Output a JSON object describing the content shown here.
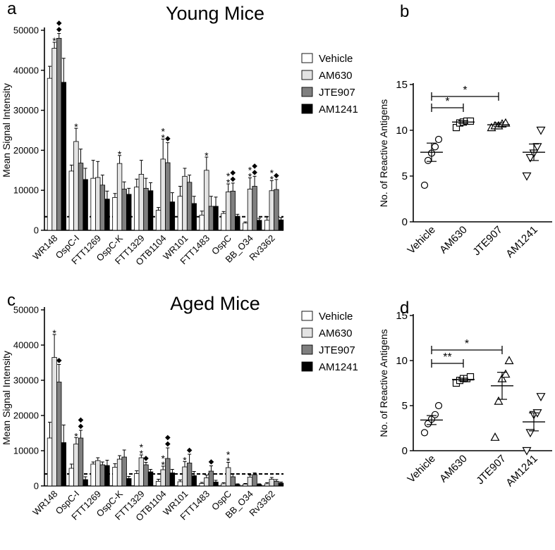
{
  "figure": {
    "panel_labels": [
      "a",
      "b",
      "c",
      "d"
    ],
    "colors": {
      "Vehicle": "#ffffff",
      "AM630": "#e3e3e3",
      "JTE907": "#7f7f7f",
      "AM1241": "#000000",
      "axis": "#000000",
      "threshold": "#000000"
    }
  },
  "chart_data": [
    {
      "panel": "a",
      "type": "bar",
      "title": "Young Mice",
      "ylabel": "Mean Signal Intensity",
      "xlabel": "",
      "ylim": [
        0,
        50000
      ],
      "yticks": [
        0,
        10000,
        20000,
        30000,
        40000,
        50000
      ],
      "threshold": 3400,
      "legend": "top-right",
      "categories": [
        "WR148",
        "OspC-I",
        "FTT1269",
        "OspC-K",
        "FTT1329",
        "OTB1104",
        "WR101",
        "FTT1483",
        "OspC",
        "BB_O34",
        "Rv3362"
      ],
      "series": [
        {
          "name": "Vehicle",
          "values": [
            38000,
            14800,
            13000,
            8200,
            10800,
            5000,
            8500,
            3800,
            4200,
            1800,
            2500
          ],
          "errors": [
            3000,
            1500,
            4500,
            1000,
            2000,
            700,
            2500,
            1000,
            500,
            300,
            900
          ]
        },
        {
          "name": "AM630",
          "values": [
            45500,
            22200,
            13200,
            16700,
            14000,
            17800,
            13500,
            15000,
            9600,
            10300,
            9900
          ],
          "errors": [
            1500,
            3300,
            4000,
            2000,
            3500,
            5000,
            2000,
            3300,
            2000,
            2800,
            2500
          ]
        },
        {
          "name": "JTE907",
          "values": [
            48000,
            16800,
            11300,
            10300,
            10500,
            16900,
            12000,
            6000,
            9800,
            11000,
            10200
          ],
          "errors": [
            1200,
            3500,
            2500,
            1800,
            2500,
            5000,
            1800,
            2500,
            2000,
            2500,
            2500
          ]
        },
        {
          "name": "AM1241",
          "values": [
            37000,
            12700,
            7800,
            9000,
            9900,
            7100,
            6700,
            6000,
            3500,
            2500,
            2600
          ],
          "errors": [
            6000,
            2800,
            2000,
            1500,
            2000,
            2300,
            1800,
            2300,
            500,
            500,
            600
          ]
        }
      ],
      "annotations": [
        {
          "category": "WR148",
          "series": "AM630",
          "marks": [
            "*"
          ]
        },
        {
          "category": "WR148",
          "series": "JTE907",
          "marks": [
            "◆",
            "◆"
          ]
        },
        {
          "category": "OspC-I",
          "series": "AM630",
          "marks": [
            "*"
          ]
        },
        {
          "category": "OspC-K",
          "series": "AM630",
          "marks": [
            "*"
          ]
        },
        {
          "category": "OTB1104",
          "series": "AM630",
          "marks": [
            "*",
            "*"
          ]
        },
        {
          "category": "OTB1104",
          "series": "JTE907",
          "marks": [
            "◆"
          ]
        },
        {
          "category": "FTT1483",
          "series": "AM630",
          "marks": [
            "*"
          ]
        },
        {
          "category": "OspC",
          "series": "AM630",
          "marks": [
            "*",
            "*"
          ]
        },
        {
          "category": "OspC",
          "series": "JTE907",
          "marks": [
            "◆",
            "◆"
          ]
        },
        {
          "category": "BB_O34",
          "series": "AM630",
          "marks": [
            "*",
            "*"
          ]
        },
        {
          "category": "BB_O34",
          "series": "JTE907",
          "marks": [
            "◆",
            "◆"
          ]
        },
        {
          "category": "Rv3362",
          "series": "AM630",
          "marks": [
            "*",
            "*"
          ]
        },
        {
          "category": "Rv3362",
          "series": "JTE907",
          "marks": [
            "◆"
          ]
        }
      ]
    },
    {
      "panel": "b",
      "type": "scatter",
      "title": "",
      "ylabel": "No. of Reactive Antigens",
      "xlabel": "",
      "ylim": [
        0,
        15
      ],
      "yticks": [
        0,
        5,
        10,
        15
      ],
      "categories": [
        "Vehicle",
        "AM630",
        "JTE907",
        "AM1241"
      ],
      "markers": [
        "circle",
        "square",
        "triangle-up",
        "triangle-down"
      ],
      "points": [
        [
          4,
          6.7,
          7.5,
          8.2,
          9
        ],
        [
          10.3,
          10.8,
          10.9,
          11,
          11
        ],
        [
          10.3,
          10.5,
          10.5,
          10.7,
          10.8
        ],
        [
          5,
          7,
          7.5,
          8.2,
          10
        ]
      ],
      "means": [
        7.6,
        10.9,
        10.6,
        7.6
      ],
      "sem": [
        1.0,
        0.15,
        0.2,
        0.9
      ],
      "significance": [
        {
          "from": "Vehicle",
          "to": "AM630",
          "label": "*"
        },
        {
          "from": "Vehicle",
          "to": "JTE907",
          "label": "*"
        }
      ]
    },
    {
      "panel": "c",
      "type": "bar",
      "title": "Aged Mice",
      "ylabel": "Mean Signal Intensity",
      "xlabel": "",
      "ylim": [
        0,
        50000
      ],
      "yticks": [
        0,
        10000,
        20000,
        30000,
        40000,
        50000
      ],
      "threshold": 3400,
      "legend": "top-right",
      "categories": [
        "WR148",
        "OspC-I",
        "FTT1269",
        "OspC-K",
        "FTT1329",
        "OTB1104",
        "WR101",
        "FTT1483",
        "OspC",
        "BB_O34",
        "Rv3362"
      ],
      "series": [
        {
          "name": "Vehicle",
          "values": [
            13600,
            5000,
            6200,
            5300,
            3500,
            1300,
            1200,
            700,
            600,
            500,
            600
          ],
          "errors": [
            4500,
            1200,
            600,
            1000,
            800,
            600,
            500,
            300,
            300,
            200,
            300
          ]
        },
        {
          "name": "AM630",
          "values": [
            36500,
            11900,
            7200,
            7600,
            8000,
            4600,
            5400,
            2300,
            5200,
            2500,
            1900
          ],
          "errors": [
            6500,
            1800,
            800,
            1000,
            800,
            1000,
            1500,
            800,
            1500,
            600,
            500
          ]
        },
        {
          "name": "JTE907",
          "values": [
            29500,
            13600,
            6000,
            8200,
            6000,
            7800,
            6500,
            4200,
            2600,
            3200,
            1300
          ],
          "errors": [
            5000,
            2200,
            800,
            2000,
            700,
            3000,
            2500,
            1500,
            800,
            500,
            500
          ]
        },
        {
          "name": "AM1241",
          "values": [
            12300,
            1800,
            5800,
            2100,
            4000,
            3700,
            2900,
            1100,
            400,
            400,
            800
          ],
          "errors": [
            5000,
            800,
            1500,
            600,
            700,
            1000,
            1200,
            500,
            200,
            200,
            300
          ]
        }
      ],
      "annotations": [
        {
          "category": "WR148",
          "series": "AM630",
          "marks": [
            "*"
          ]
        },
        {
          "category": "WR148",
          "series": "JTE907",
          "marks": [
            "◆"
          ]
        },
        {
          "category": "OspC-I",
          "series": "AM630",
          "marks": [
            "*"
          ]
        },
        {
          "category": "OspC-I",
          "series": "JTE907",
          "marks": [
            "◆",
            "◆"
          ]
        },
        {
          "category": "FTT1329",
          "series": "AM630",
          "marks": [
            "*",
            "*"
          ]
        },
        {
          "category": "FTT1329",
          "series": "JTE907",
          "marks": [
            "◆"
          ]
        },
        {
          "category": "OTB1104",
          "series": "AM630",
          "marks": [
            "*",
            "*"
          ]
        },
        {
          "category": "OTB1104",
          "series": "JTE907",
          "marks": [
            "◆",
            "◆"
          ]
        },
        {
          "category": "WR101",
          "series": "AM630",
          "marks": [
            "*"
          ]
        },
        {
          "category": "WR101",
          "series": "JTE907",
          "marks": [
            "◆"
          ]
        },
        {
          "category": "FTT1483",
          "series": "JTE907",
          "marks": [
            "◆"
          ]
        },
        {
          "category": "OspC",
          "series": "AM630",
          "marks": [
            "*",
            "*"
          ]
        }
      ]
    },
    {
      "panel": "d",
      "type": "scatter",
      "title": "",
      "ylabel": "No. of Reactive Antigens",
      "xlabel": "",
      "ylim": [
        0,
        15
      ],
      "yticks": [
        0,
        5,
        10,
        15
      ],
      "categories": [
        "Vehicle",
        "AM630",
        "JTE907",
        "AM1241"
      ],
      "markers": [
        "circle",
        "square",
        "triangle-up",
        "triangle-down"
      ],
      "points": [
        [
          2,
          3,
          3.5,
          4,
          5
        ],
        [
          7.5,
          7.8,
          8,
          8,
          8.2
        ],
        [
          1.5,
          5.5,
          8,
          8.5,
          10
        ],
        [
          0,
          2,
          4,
          4.2,
          6
        ]
      ],
      "means": [
        3.4,
        7.9,
        7.2,
        3.2
      ],
      "sem": [
        0.5,
        0.15,
        1.5,
        1.0
      ],
      "significance": [
        {
          "from": "Vehicle",
          "to": "AM630",
          "label": "**"
        },
        {
          "from": "Vehicle",
          "to": "JTE907",
          "label": "*"
        }
      ]
    }
  ]
}
